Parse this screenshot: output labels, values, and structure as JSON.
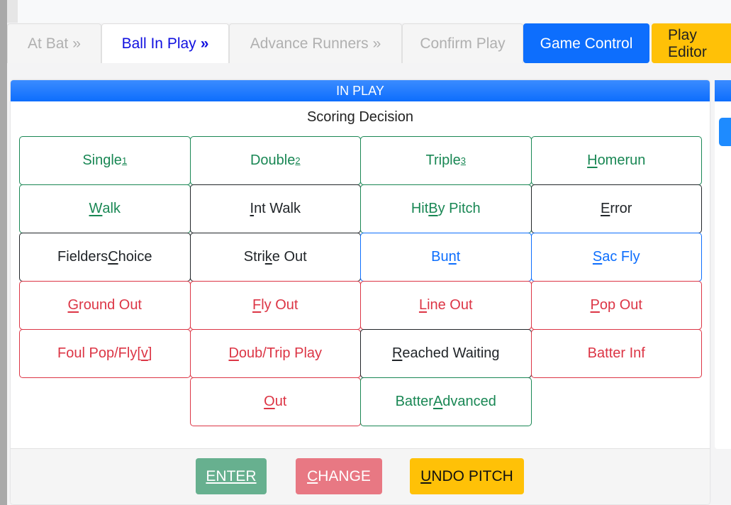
{
  "tabs": [
    {
      "label": "At Bat",
      "chevron": "»",
      "state": "inactive"
    },
    {
      "label": "Ball In Play",
      "chevron": "»",
      "state": "active"
    },
    {
      "label": "Advance Runners",
      "chevron": "»",
      "state": "inactive"
    },
    {
      "label": "Confirm Play",
      "chevron": "",
      "state": "inactive"
    },
    {
      "label": "Game Control",
      "chevron": "",
      "state": "blue"
    },
    {
      "label": "Play Editor",
      "chevron": "",
      "state": "yellow"
    }
  ],
  "panel": {
    "header": "IN PLAY",
    "subtitle": "Scoring Decision"
  },
  "colors": {
    "green": "#198754",
    "dark": "#212529",
    "blue": "#0d6efd",
    "red": "#dc3545",
    "enter": "#67b08f",
    "change": "#e87883",
    "undo": "#ffc107"
  },
  "buttons": [
    {
      "pre": "Single",
      "key": "1",
      "post": "",
      "sup": true,
      "color": "g"
    },
    {
      "pre": "Double",
      "key": "2",
      "post": "",
      "sup": true,
      "color": "g"
    },
    {
      "pre": "Triple",
      "key": "3",
      "post": "",
      "sup": true,
      "color": "g"
    },
    {
      "pre": "",
      "key": "H",
      "post": "omerun",
      "color": "g"
    },
    {
      "pre": "",
      "key": "W",
      "post": "alk",
      "color": "g"
    },
    {
      "pre": "",
      "key": "I",
      "post": "nt Walk",
      "color": "d"
    },
    {
      "pre": "Hit ",
      "key": "B",
      "post": "y Pitch",
      "color": "g"
    },
    {
      "pre": "",
      "key": "E",
      "post": "rror",
      "color": "d"
    },
    {
      "pre": "Fielders ",
      "key": "C",
      "post": "hoice",
      "color": "d"
    },
    {
      "pre": "Stri",
      "key": "k",
      "post": "e Out",
      "color": "d"
    },
    {
      "pre": "Bu",
      "key": "n",
      "post": "t",
      "color": "b"
    },
    {
      "pre": "",
      "key": "S",
      "post": "ac Fly",
      "color": "b"
    },
    {
      "pre": "",
      "key": "G",
      "post": "round Out",
      "color": "r"
    },
    {
      "pre": "",
      "key": "F",
      "post": "ly Out",
      "color": "r"
    },
    {
      "pre": "",
      "key": "L",
      "post": "ine Out",
      "color": "r"
    },
    {
      "pre": "",
      "key": "P",
      "post": "op Out",
      "color": "r"
    },
    {
      "pre": "Foul Pop/Fly[",
      "key": "v",
      "post": "]",
      "color": "r"
    },
    {
      "pre": "",
      "key": "D",
      "post": "oub/Trip Play",
      "color": "r"
    },
    {
      "pre": "",
      "key": "R",
      "post": "eached Waiting",
      "color": "d"
    },
    {
      "pre": "Batter Inf",
      "key": "",
      "post": "",
      "color": "r"
    },
    {
      "pre": "",
      "key": "O",
      "post": "ut",
      "color": "r",
      "col": 2
    },
    {
      "pre": "Batter ",
      "key": "A",
      "post": "dvanced",
      "color": "g"
    }
  ],
  "footer": {
    "enter": {
      "pre": "",
      "key": "ENTER",
      "post": ""
    },
    "change": {
      "pre": "",
      "key": "C",
      "post": "HANGE"
    },
    "undo": {
      "pre": "",
      "key": "U",
      "post": "NDO PITCH"
    }
  }
}
